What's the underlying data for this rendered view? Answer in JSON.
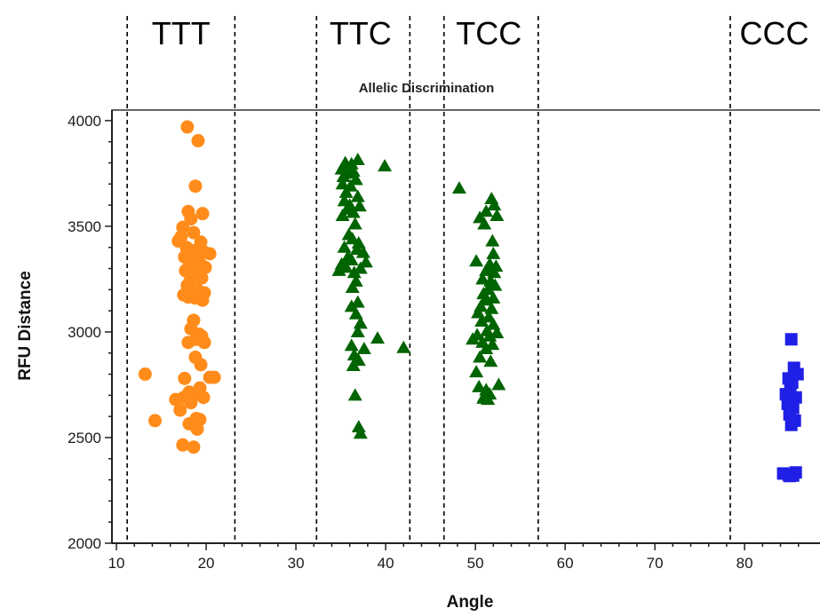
{
  "chart_data": {
    "type": "scatter",
    "title": "Allelic Discrimination",
    "xlabel": "Angle",
    "ylabel": "RFU Distance",
    "xlim": [
      9.5,
      88.5
    ],
    "ylim": [
      2000,
      4050
    ],
    "xticks": [
      10,
      20,
      30,
      40,
      50,
      60,
      70,
      80
    ],
    "yticks": [
      2000,
      2500,
      3000,
      3500,
      4000
    ],
    "grid": false,
    "dividers": [
      11.2,
      23.2,
      32.3,
      42.7,
      46.5,
      57.0,
      78.4
    ],
    "cluster_labels": [
      {
        "text": "TTT",
        "x": 17.2
      },
      {
        "text": "TTC",
        "x": 37.2
      },
      {
        "text": "TCC",
        "x": 51.5
      },
      {
        "text": "CCC",
        "x": 83.3
      }
    ],
    "series": [
      {
        "marker": "circle",
        "color": "#FF8C1A",
        "points": [
          [
            17.9,
            3970
          ],
          [
            19.1,
            3905
          ],
          [
            18.8,
            3690
          ],
          [
            18.0,
            3570
          ],
          [
            19.6,
            3560
          ],
          [
            18.3,
            3535
          ],
          [
            17.4,
            3495
          ],
          [
            18.6,
            3470
          ],
          [
            17.2,
            3450
          ],
          [
            16.9,
            3430
          ],
          [
            19.4,
            3425
          ],
          [
            17.8,
            3400
          ],
          [
            18.4,
            3385
          ],
          [
            19.7,
            3380
          ],
          [
            20.4,
            3370
          ],
          [
            17.6,
            3355
          ],
          [
            18.9,
            3340
          ],
          [
            19.3,
            3325
          ],
          [
            18.1,
            3310
          ],
          [
            19.9,
            3305
          ],
          [
            17.7,
            3290
          ],
          [
            18.7,
            3270
          ],
          [
            19.5,
            3255
          ],
          [
            18.2,
            3240
          ],
          [
            17.9,
            3220
          ],
          [
            19.0,
            3200
          ],
          [
            18.5,
            3190
          ],
          [
            19.8,
            3185
          ],
          [
            17.5,
            3175
          ],
          [
            18.0,
            3165
          ],
          [
            18.8,
            3160
          ],
          [
            19.6,
            3150
          ],
          [
            18.6,
            3055
          ],
          [
            18.3,
            3015
          ],
          [
            19.2,
            2990
          ],
          [
            19.5,
            2980
          ],
          [
            18.9,
            2965
          ],
          [
            18.0,
            2950
          ],
          [
            19.8,
            2950
          ],
          [
            18.8,
            2880
          ],
          [
            19.4,
            2845
          ],
          [
            13.2,
            2800
          ],
          [
            20.4,
            2785
          ],
          [
            20.9,
            2785
          ],
          [
            17.6,
            2780
          ],
          [
            19.3,
            2735
          ],
          [
            18.1,
            2715
          ],
          [
            18.6,
            2705
          ],
          [
            19.0,
            2705
          ],
          [
            17.5,
            2690
          ],
          [
            19.7,
            2690
          ],
          [
            16.6,
            2680
          ],
          [
            18.3,
            2665
          ],
          [
            17.1,
            2630
          ],
          [
            18.9,
            2590
          ],
          [
            19.3,
            2585
          ],
          [
            14.3,
            2580
          ],
          [
            18.1,
            2565
          ],
          [
            17.4,
            2465
          ],
          [
            18.6,
            2455
          ],
          [
            19.0,
            2540
          ]
        ]
      },
      {
        "marker": "triangle",
        "color": "#006400",
        "points": [
          [
            36.9,
            3815
          ],
          [
            35.5,
            3800
          ],
          [
            36.2,
            3795
          ],
          [
            39.9,
            3785
          ],
          [
            35.1,
            3770
          ],
          [
            36.4,
            3760
          ],
          [
            35.8,
            3750
          ],
          [
            35.3,
            3735
          ],
          [
            36.7,
            3720
          ],
          [
            35.2,
            3700
          ],
          [
            36.1,
            3690
          ],
          [
            35.6,
            3660
          ],
          [
            36.9,
            3640
          ],
          [
            35.4,
            3620
          ],
          [
            36.0,
            3600
          ],
          [
            37.1,
            3595
          ],
          [
            35.7,
            3580
          ],
          [
            36.4,
            3565
          ],
          [
            35.2,
            3550
          ],
          [
            36.6,
            3510
          ],
          [
            35.9,
            3460
          ],
          [
            36.3,
            3440
          ],
          [
            37.0,
            3420
          ],
          [
            35.4,
            3400
          ],
          [
            36.8,
            3390
          ],
          [
            37.5,
            3375
          ],
          [
            35.8,
            3355
          ],
          [
            36.2,
            3340
          ],
          [
            37.8,
            3330
          ],
          [
            35.1,
            3320
          ],
          [
            35.6,
            3305
          ],
          [
            37.2,
            3300
          ],
          [
            34.8,
            3290
          ],
          [
            36.5,
            3280
          ],
          [
            36.7,
            3240
          ],
          [
            36.3,
            3210
          ],
          [
            36.9,
            3140
          ],
          [
            36.2,
            3120
          ],
          [
            36.7,
            3085
          ],
          [
            37.2,
            3040
          ],
          [
            36.9,
            3000
          ],
          [
            39.1,
            2970
          ],
          [
            36.2,
            2935
          ],
          [
            37.6,
            2920
          ],
          [
            42.0,
            2925
          ],
          [
            36.5,
            2890
          ],
          [
            37.0,
            2865
          ],
          [
            36.4,
            2840
          ],
          [
            36.6,
            2700
          ],
          [
            37.0,
            2550
          ],
          [
            37.2,
            2520
          ]
        ]
      },
      {
        "marker": "triangle",
        "color": "#006400",
        "points": [
          [
            48.2,
            3680
          ],
          [
            51.8,
            3630
          ],
          [
            52.1,
            3600
          ],
          [
            51.2,
            3570
          ],
          [
            52.4,
            3550
          ],
          [
            50.5,
            3540
          ],
          [
            51.0,
            3510
          ],
          [
            51.9,
            3430
          ],
          [
            52.0,
            3370
          ],
          [
            50.1,
            3335
          ],
          [
            51.6,
            3320
          ],
          [
            52.3,
            3310
          ],
          [
            51.2,
            3290
          ],
          [
            52.1,
            3280
          ],
          [
            50.8,
            3250
          ],
          [
            51.7,
            3240
          ],
          [
            52.2,
            3220
          ],
          [
            51.4,
            3200
          ],
          [
            50.9,
            3180
          ],
          [
            52.0,
            3160
          ],
          [
            51.1,
            3150
          ],
          [
            50.6,
            3120
          ],
          [
            51.8,
            3110
          ],
          [
            50.3,
            3090
          ],
          [
            51.5,
            3070
          ],
          [
            50.7,
            3050
          ],
          [
            52.0,
            3035
          ],
          [
            51.3,
            3005
          ],
          [
            52.4,
            2995
          ],
          [
            50.2,
            2985
          ],
          [
            51.6,
            2980
          ],
          [
            49.7,
            2965
          ],
          [
            50.8,
            2950
          ],
          [
            51.9,
            2940
          ],
          [
            51.2,
            2920
          ],
          [
            50.5,
            2880
          ],
          [
            51.7,
            2860
          ],
          [
            50.1,
            2810
          ],
          [
            52.6,
            2750
          ],
          [
            50.4,
            2740
          ],
          [
            51.2,
            2725
          ],
          [
            51.6,
            2705
          ],
          [
            51.0,
            2695
          ],
          [
            50.9,
            2685
          ],
          [
            51.4,
            2680
          ]
        ]
      },
      {
        "marker": "square",
        "color": "#1F1FE6",
        "points": [
          [
            85.2,
            2965
          ],
          [
            85.5,
            2830
          ],
          [
            85.9,
            2800
          ],
          [
            84.9,
            2780
          ],
          [
            85.3,
            2760
          ],
          [
            85.1,
            2740
          ],
          [
            84.6,
            2705
          ],
          [
            85.7,
            2690
          ],
          [
            84.8,
            2660
          ],
          [
            85.4,
            2640
          ],
          [
            85.0,
            2610
          ],
          [
            85.6,
            2580
          ],
          [
            85.2,
            2560
          ],
          [
            84.3,
            2330
          ],
          [
            84.9,
            2325
          ],
          [
            85.7,
            2335
          ],
          [
            85.4,
            2320
          ],
          [
            85.0,
            2318
          ]
        ]
      }
    ]
  }
}
